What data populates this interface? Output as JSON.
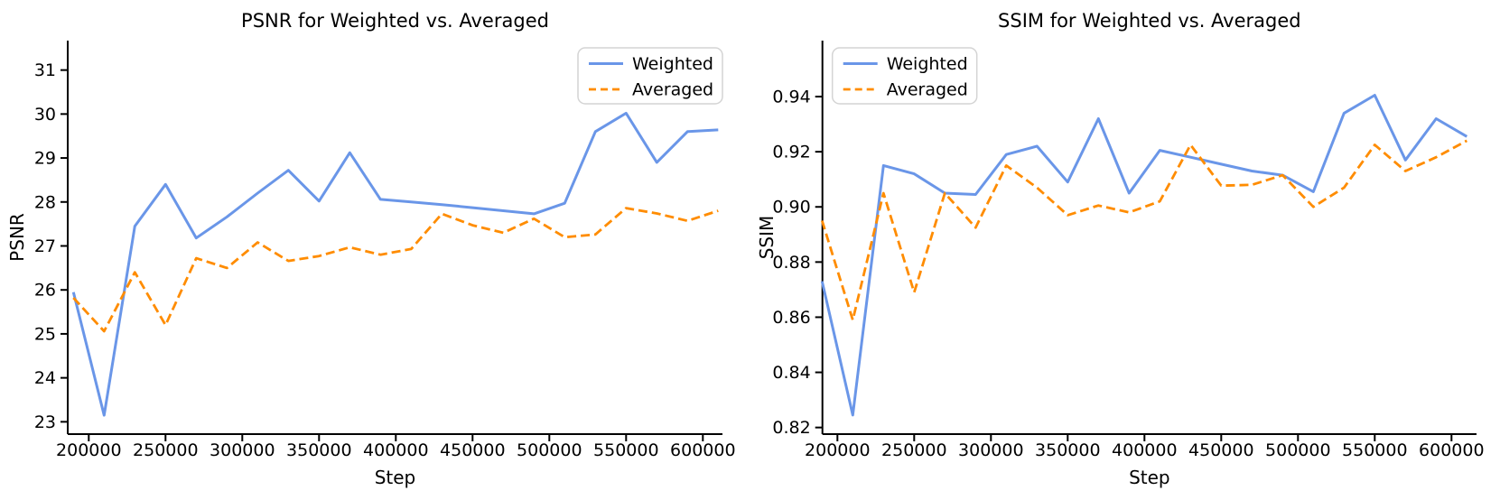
{
  "colors": {
    "weighted": "#6A96E8",
    "averaged": "#FF8C00",
    "axis": "#000000",
    "text": "#000000",
    "legend_border": "#d4d4d4",
    "legend_background": "#ffffff",
    "background": "#ffffff"
  },
  "legend": {
    "weighted_label": "Weighted",
    "averaged_label": "Averaged"
  },
  "chart_data": [
    {
      "type": "line",
      "name": "psnr",
      "title": "PSNR for Weighted vs. Averaged",
      "xlabel": "Step",
      "ylabel": "PSNR",
      "grid": false,
      "legend_position": "top-right",
      "x": [
        190000,
        210000,
        230000,
        250000,
        270000,
        290000,
        310000,
        330000,
        350000,
        370000,
        390000,
        410000,
        430000,
        450000,
        470000,
        490000,
        510000,
        530000,
        550000,
        570000,
        590000,
        610000
      ],
      "series": [
        {
          "name": "Weighted",
          "style": "solid",
          "color_key": "weighted",
          "values": [
            25.95,
            23.15,
            27.45,
            28.4,
            27.18,
            27.66,
            28.2,
            28.72,
            28.02,
            29.12,
            28.06,
            28.0,
            27.94,
            27.87,
            27.8,
            27.73,
            27.97,
            29.6,
            30.02,
            28.9,
            29.6,
            29.64
          ]
        },
        {
          "name": "Averaged",
          "style": "dashed",
          "color_key": "averaged",
          "values": [
            25.82,
            25.06,
            26.4,
            25.2,
            26.72,
            26.5,
            27.08,
            26.66,
            26.77,
            26.97,
            26.8,
            26.93,
            27.73,
            27.47,
            27.3,
            27.62,
            27.2,
            27.26,
            27.86,
            27.74,
            27.57,
            27.8
          ]
        }
      ],
      "x_ticks": [
        200000,
        250000,
        300000,
        350000,
        400000,
        450000,
        500000,
        550000,
        600000
      ],
      "x_tick_labels": [
        "200000",
        "250000",
        "300000",
        "350000",
        "400000",
        "450000",
        "500000",
        "550000",
        "600000"
      ],
      "y_ticks": [
        23,
        24,
        25,
        26,
        27,
        28,
        29,
        30,
        31
      ],
      "y_tick_labels": [
        "23",
        "24",
        "25",
        "26",
        "27",
        "28",
        "29",
        "30",
        "31"
      ],
      "xlim": [
        186300,
        612765
      ],
      "ylim": [
        22.72,
        31.67
      ]
    },
    {
      "type": "line",
      "name": "ssim",
      "title": "SSIM for Weighted vs. Averaged",
      "xlabel": "Step",
      "ylabel": "SSIM",
      "grid": false,
      "legend_position": "top-left",
      "x": [
        190000,
        210000,
        230000,
        250000,
        270000,
        290000,
        310000,
        330000,
        350000,
        370000,
        390000,
        410000,
        430000,
        450000,
        470000,
        490000,
        510000,
        530000,
        550000,
        570000,
        590000,
        610000
      ],
      "series": [
        {
          "name": "Weighted",
          "style": "solid",
          "color_key": "weighted",
          "values": [
            0.873,
            0.8245,
            0.915,
            0.912,
            0.905,
            0.9045,
            0.919,
            0.922,
            0.909,
            0.932,
            0.905,
            0.9205,
            0.918,
            0.9155,
            0.913,
            0.9115,
            0.9055,
            0.934,
            0.9405,
            0.917,
            0.932,
            0.9255
          ]
        },
        {
          "name": "Averaged",
          "style": "dashed",
          "color_key": "averaged",
          "values": [
            0.895,
            0.859,
            0.905,
            0.869,
            0.905,
            0.8925,
            0.915,
            0.907,
            0.897,
            0.9005,
            0.898,
            0.902,
            0.9225,
            0.9077,
            0.908,
            0.9115,
            0.9,
            0.907,
            0.9225,
            0.913,
            0.918,
            0.924
          ]
        }
      ],
      "x_ticks": [
        200000,
        250000,
        300000,
        350000,
        400000,
        450000,
        500000,
        550000,
        600000
      ],
      "x_tick_labels": [
        "200000",
        "250000",
        "300000",
        "350000",
        "400000",
        "450000",
        "500000",
        "550000",
        "600000"
      ],
      "y_ticks": [
        0.82,
        0.84,
        0.86,
        0.88,
        0.9,
        0.92,
        0.94
      ],
      "y_tick_labels": [
        "0.82",
        "0.84",
        "0.86",
        "0.88",
        "0.90",
        "0.92",
        "0.94"
      ],
      "xlim": [
        190235,
        616294
      ],
      "ylim": [
        0.8176,
        0.9603
      ]
    }
  ]
}
